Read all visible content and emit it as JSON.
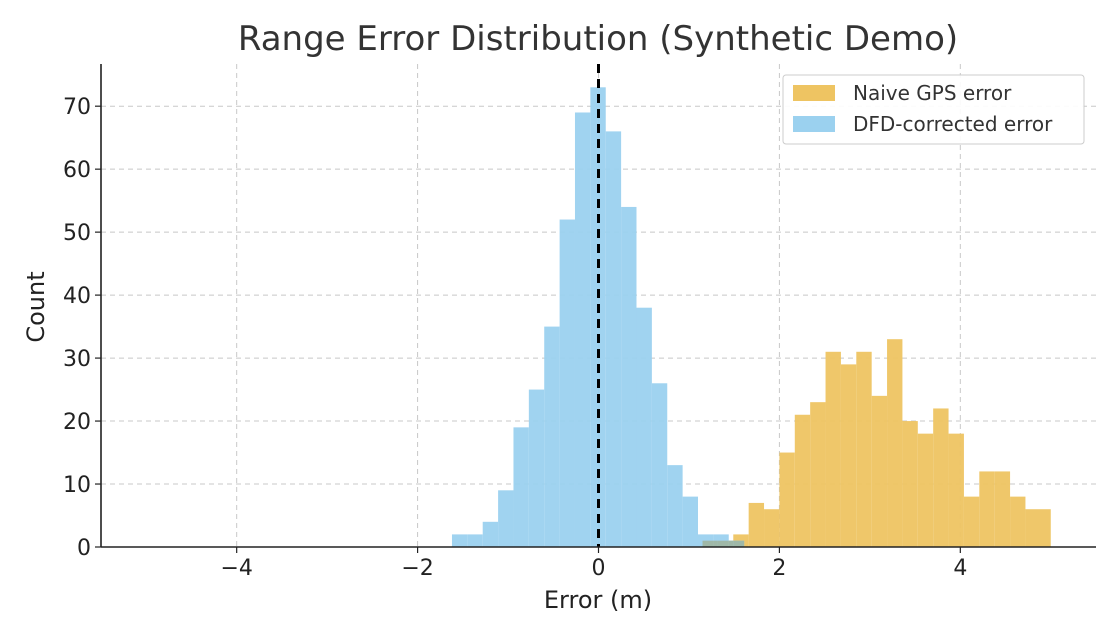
{
  "chart_data": {
    "type": "histogram",
    "title": "Range Error Distribution (Synthetic Demo)",
    "xlabel": "Error (m)",
    "ylabel": "Count",
    "xlim": [
      -5.5,
      5.5
    ],
    "ylim": [
      0,
      76.7
    ],
    "xticks": [
      -4,
      -2,
      0,
      2,
      4
    ],
    "xtick_labels": [
      "−4",
      "−2",
      "0",
      "2",
      "4"
    ],
    "yticks": [
      0,
      10,
      20,
      30,
      40,
      50,
      60,
      70
    ],
    "ytick_labels": [
      "0",
      "10",
      "20",
      "30",
      "40",
      "50",
      "60",
      "70"
    ],
    "grid": true,
    "legend_position": "top-right",
    "reference_line": {
      "x": 0,
      "style": "dashed",
      "color": "#000000"
    },
    "series": [
      {
        "name": "Naive GPS error",
        "color": "#EEC462",
        "bins": [
          {
            "x0": 1.15,
            "x1": 1.32,
            "count": 1
          },
          {
            "x0": 1.32,
            "x1": 1.49,
            "count": 1
          },
          {
            "x0": 1.49,
            "x1": 1.66,
            "count": 2
          },
          {
            "x0": 1.66,
            "x1": 1.83,
            "count": 7
          },
          {
            "x0": 1.83,
            "x1": 2.0,
            "count": 6
          },
          {
            "x0": 2.0,
            "x1": 2.17,
            "count": 15
          },
          {
            "x0": 2.17,
            "x1": 2.34,
            "count": 21
          },
          {
            "x0": 2.34,
            "x1": 2.51,
            "count": 23
          },
          {
            "x0": 2.51,
            "x1": 2.68,
            "count": 31
          },
          {
            "x0": 2.68,
            "x1": 2.85,
            "count": 29
          },
          {
            "x0": 2.85,
            "x1": 3.02,
            "count": 31
          },
          {
            "x0": 3.02,
            "x1": 3.19,
            "count": 24
          },
          {
            "x0": 3.19,
            "x1": 3.36,
            "count": 33
          },
          {
            "x0": 3.36,
            "x1": 3.53,
            "count": 20
          },
          {
            "x0": 3.53,
            "x1": 3.7,
            "count": 18
          },
          {
            "x0": 3.7,
            "x1": 3.87,
            "count": 22
          },
          {
            "x0": 3.87,
            "x1": 4.04,
            "count": 18
          },
          {
            "x0": 4.04,
            "x1": 4.21,
            "count": 8
          },
          {
            "x0": 4.21,
            "x1": 4.38,
            "count": 12
          },
          {
            "x0": 4.38,
            "x1": 4.55,
            "count": 12
          },
          {
            "x0": 4.55,
            "x1": 4.72,
            "count": 8
          },
          {
            "x0": 4.72,
            "x1": 5.0,
            "count": 6
          }
        ]
      },
      {
        "name": "DFD-corrected error",
        "color": "#9BD1EF",
        "bins": [
          {
            "x0": -1.62,
            "x1": -1.45,
            "count": 2
          },
          {
            "x0": -1.45,
            "x1": -1.28,
            "count": 2
          },
          {
            "x0": -1.28,
            "x1": -1.11,
            "count": 4
          },
          {
            "x0": -1.11,
            "x1": -0.94,
            "count": 9
          },
          {
            "x0": -0.94,
            "x1": -0.77,
            "count": 19
          },
          {
            "x0": -0.77,
            "x1": -0.6,
            "count": 25
          },
          {
            "x0": -0.6,
            "x1": -0.43,
            "count": 35
          },
          {
            "x0": -0.43,
            "x1": -0.26,
            "count": 52
          },
          {
            "x0": -0.26,
            "x1": -0.09,
            "count": 69
          },
          {
            "x0": -0.09,
            "x1": 0.08,
            "count": 73
          },
          {
            "x0": 0.08,
            "x1": 0.25,
            "count": 66
          },
          {
            "x0": 0.25,
            "x1": 0.42,
            "count": 54
          },
          {
            "x0": 0.42,
            "x1": 0.59,
            "count": 38
          },
          {
            "x0": 0.59,
            "x1": 0.76,
            "count": 26
          },
          {
            "x0": 0.76,
            "x1": 0.93,
            "count": 13
          },
          {
            "x0": 0.93,
            "x1": 1.1,
            "count": 8
          },
          {
            "x0": 1.1,
            "x1": 1.27,
            "count": 2
          },
          {
            "x0": 1.27,
            "x1": 1.44,
            "count": 2
          },
          {
            "x0": 1.44,
            "x1": 1.61,
            "count": 1
          }
        ]
      }
    ]
  }
}
